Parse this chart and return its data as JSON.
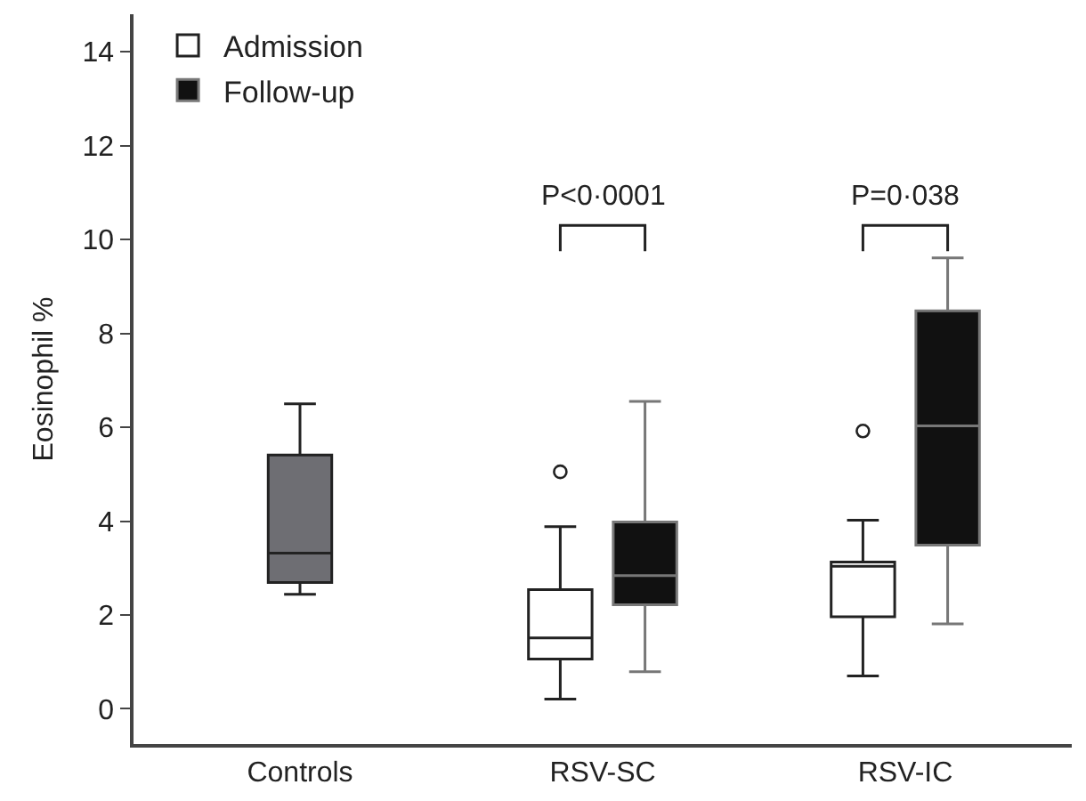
{
  "chart_data": {
    "type": "box",
    "ylabel": "Eosinophil %",
    "categories": [
      "Controls",
      "RSV-SC",
      "RSV-IC"
    ],
    "ylim": [
      -0.75,
      14.8
    ],
    "yticks": [
      0,
      2,
      4,
      6,
      8,
      10,
      12,
      14
    ],
    "grid": false,
    "legend": "top left",
    "series": [
      {
        "color": "#6e6e73",
        "boxes": [
          {
            "low": 2.44,
            "q1": 2.69,
            "median": 3.32,
            "q3": 5.41,
            "high": 6.5
          },
          null,
          null
        ]
      },
      {
        "name": "Admission",
        "color": "#ffffff",
        "boxes": [
          null,
          {
            "low": 0.21,
            "q1": 1.06,
            "median": 1.51,
            "q3": 2.54,
            "high": 3.88,
            "outliers": [
              5.05
            ]
          },
          {
            "low": 0.7,
            "q1": 1.96,
            "median": 3.04,
            "q3": 3.13,
            "high": 4.02,
            "outliers": [
              5.92
            ]
          }
        ]
      },
      {
        "name": "Follow-up",
        "color": "#111111",
        "boxes": [
          null,
          {
            "low": 0.79,
            "q1": 2.22,
            "median": 2.84,
            "q3": 3.98,
            "high": 6.55
          },
          {
            "low": 1.81,
            "q1": 3.49,
            "median": 6.03,
            "q3": 8.48,
            "high": 9.61
          }
        ]
      }
    ],
    "annotations": [
      "P<0·0001",
      "P=0·038"
    ]
  }
}
